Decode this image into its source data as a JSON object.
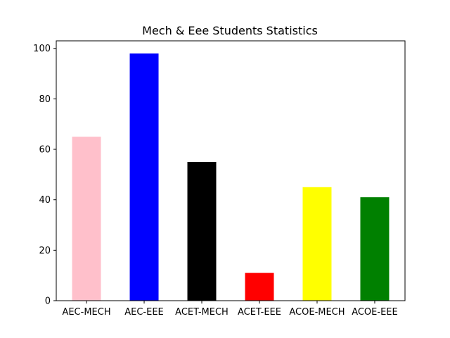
{
  "chart_data": {
    "type": "bar",
    "title": "Mech & Eee Students Statistics",
    "xlabel": "",
    "ylabel": "",
    "categories": [
      "AEC-MECH",
      "AEC-EEE",
      "ACET-MECH",
      "ACET-EEE",
      "ACOE-MECH",
      "ACOE-EEE"
    ],
    "values": [
      65,
      98,
      55,
      11,
      45,
      41
    ],
    "colors": [
      "#ffc0cb",
      "#0000ff",
      "#000000",
      "#ff0000",
      "#ffff00",
      "#008000"
    ],
    "ylim": [
      0,
      103
    ],
    "yticks": [
      0,
      20,
      40,
      60,
      80,
      100
    ],
    "grid": false,
    "legend": "none"
  }
}
